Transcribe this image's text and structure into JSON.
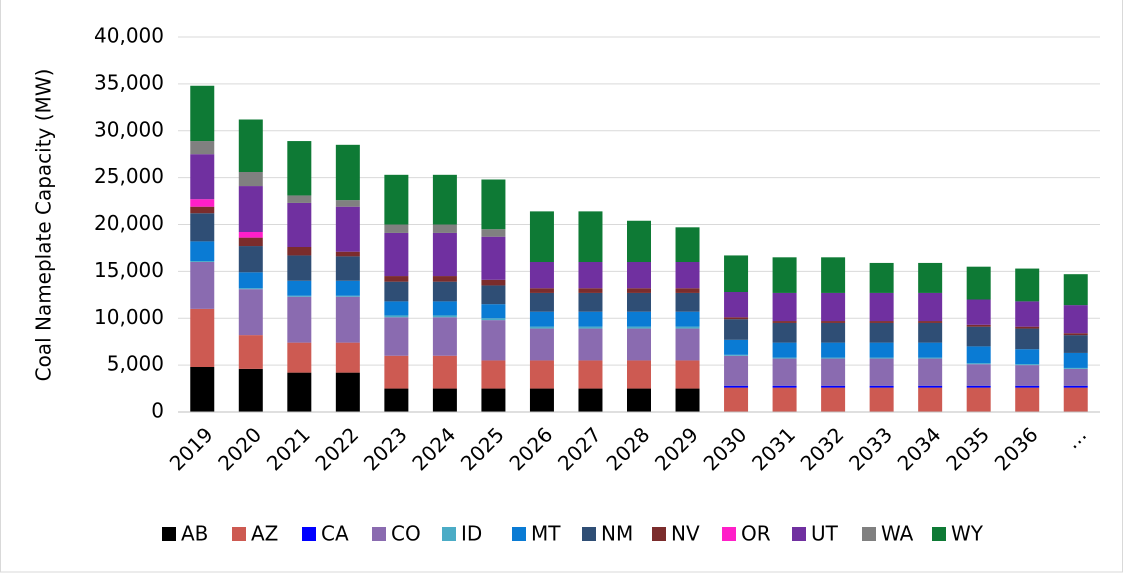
{
  "chart_data": {
    "type": "stacked_bar",
    "ylabel": "Coal Nameplate Capacity (MW)",
    "categories": [
      "2019",
      "2020",
      "2021",
      "2022",
      "2023",
      "2024",
      "2025",
      "2026",
      "2027",
      "2028",
      "2029",
      "2030",
      "2031",
      "2032",
      "2033",
      "2034",
      "2035",
      "2036",
      "…"
    ],
    "ylim": [
      0,
      40000
    ],
    "yticks": [
      {
        "value": 0,
        "label": "0"
      },
      {
        "value": 5000,
        "label": "5,000"
      },
      {
        "value": 10000,
        "label": "10,000"
      },
      {
        "value": 15000,
        "label": "15,000"
      },
      {
        "value": 20000,
        "label": "20,000"
      },
      {
        "value": 25000,
        "label": "25,000"
      },
      {
        "value": 30000,
        "label": "30,000"
      },
      {
        "value": 35000,
        "label": "35,000"
      },
      {
        "value": 40000,
        "label": "40,000"
      }
    ],
    "grid": true,
    "legend": "bottom",
    "series": [
      {
        "name": "AB",
        "color": "#000000",
        "values": [
          4800,
          4600,
          4200,
          4200,
          2500,
          2500,
          2500,
          2500,
          2500,
          2500,
          2500,
          0,
          0,
          0,
          0,
          0,
          0,
          0,
          0
        ]
      },
      {
        "name": "AZ",
        "color": "#cd5a52",
        "values": [
          6200,
          3600,
          3200,
          3200,
          3500,
          3500,
          3000,
          3000,
          3000,
          3000,
          3000,
          2600,
          2600,
          2600,
          2600,
          2600,
          2600,
          2600,
          2600
        ]
      },
      {
        "name": "CA",
        "color": "#0000ff",
        "values": [
          0,
          0,
          0,
          0,
          0,
          0,
          0,
          0,
          0,
          0,
          0,
          200,
          200,
          200,
          200,
          200,
          200,
          200,
          200
        ]
      },
      {
        "name": "CO",
        "color": "#8a6bb0",
        "values": [
          5000,
          4900,
          4900,
          4900,
          4100,
          4100,
          4300,
          3400,
          3400,
          3400,
          3400,
          3200,
          2900,
          2900,
          2900,
          2900,
          2300,
          2200,
          1800
        ]
      },
      {
        "name": "ID",
        "color": "#4bacc6",
        "values": [
          100,
          100,
          100,
          100,
          200,
          200,
          200,
          200,
          200,
          200,
          200,
          100,
          100,
          100,
          100,
          100,
          100,
          100,
          100
        ]
      },
      {
        "name": "MT",
        "color": "#0a7bd4",
        "values": [
          2100,
          1700,
          1600,
          1600,
          1500,
          1500,
          1500,
          1600,
          1600,
          1600,
          1600,
          1600,
          1600,
          1600,
          1600,
          1600,
          1800,
          1600,
          1600
        ]
      },
      {
        "name": "NM",
        "color": "#2f4e75",
        "values": [
          3000,
          2800,
          2700,
          2600,
          2100,
          2100,
          2000,
          2000,
          2000,
          2000,
          2000,
          2200,
          2100,
          2100,
          2100,
          2100,
          2100,
          2200,
          1900
        ]
      },
      {
        "name": "NV",
        "color": "#7b2c2c",
        "values": [
          700,
          900,
          900,
          500,
          600,
          600,
          600,
          500,
          500,
          500,
          500,
          200,
          200,
          200,
          200,
          200,
          200,
          200,
          200
        ]
      },
      {
        "name": "OR",
        "color": "#ff1fc8",
        "values": [
          800,
          600,
          0,
          0,
          0,
          0,
          0,
          0,
          0,
          0,
          0,
          0,
          0,
          0,
          0,
          0,
          0,
          0,
          0
        ]
      },
      {
        "name": "UT",
        "color": "#7030a0",
        "values": [
          4800,
          4900,
          4700,
          4800,
          4600,
          4600,
          4600,
          2800,
          2800,
          2800,
          2800,
          2700,
          3000,
          3000,
          3000,
          3000,
          2700,
          2700,
          3000
        ]
      },
      {
        "name": "WA",
        "color": "#808080",
        "values": [
          1400,
          1500,
          800,
          700,
          900,
          900,
          800,
          0,
          0,
          0,
          0,
          0,
          0,
          0,
          0,
          0,
          0,
          0,
          0
        ]
      },
      {
        "name": "WY",
        "color": "#0e7a35",
        "values": [
          5900,
          5600,
          5800,
          5900,
          5300,
          5300,
          5300,
          5400,
          5400,
          4400,
          3700,
          3900,
          3800,
          3800,
          3200,
          3200,
          3500,
          3500,
          3300
        ]
      }
    ]
  }
}
